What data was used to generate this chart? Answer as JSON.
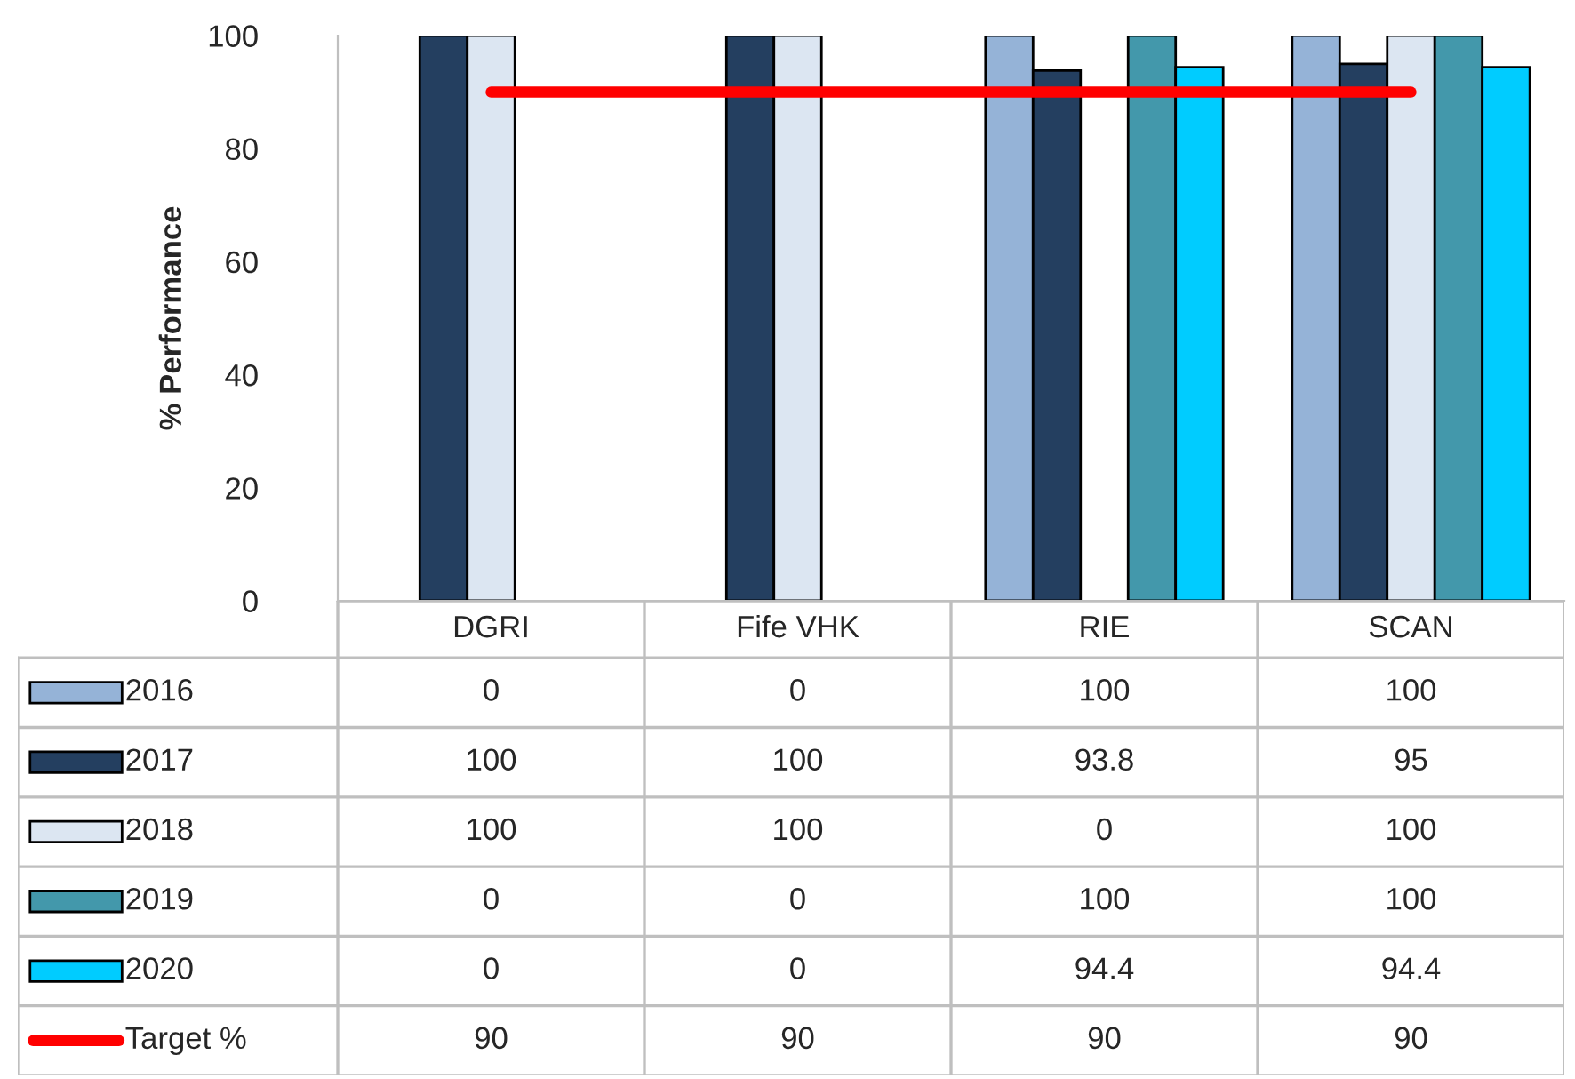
{
  "chart_data": {
    "type": "bar",
    "ylabel": "% Performance",
    "categories": [
      "DGRI",
      "Fife VHK",
      "RIE",
      "SCAN"
    ],
    "series": [
      {
        "name": "2016",
        "color": "#95b3d7",
        "values": [
          0,
          0,
          100,
          100
        ]
      },
      {
        "name": "2017",
        "color": "#243f60",
        "values": [
          100,
          100,
          93.8,
          95
        ]
      },
      {
        "name": "2018",
        "color": "#dce6f2",
        "values": [
          100,
          100,
          0,
          100
        ]
      },
      {
        "name": "2019",
        "color": "#4398ab",
        "values": [
          0,
          0,
          100,
          100
        ]
      },
      {
        "name": "2020",
        "color": "#00ccff",
        "values": [
          0,
          0,
          94.4,
          94.4
        ]
      },
      {
        "name": "Target %",
        "type": "line",
        "color": "#ff0000",
        "values": [
          90,
          90,
          90,
          90
        ]
      }
    ],
    "ylim": [
      0,
      100
    ],
    "yticks": [
      0,
      20,
      40,
      60,
      80,
      100
    ],
    "grid": false,
    "legend": "bottom",
    "data_labels": true
  }
}
